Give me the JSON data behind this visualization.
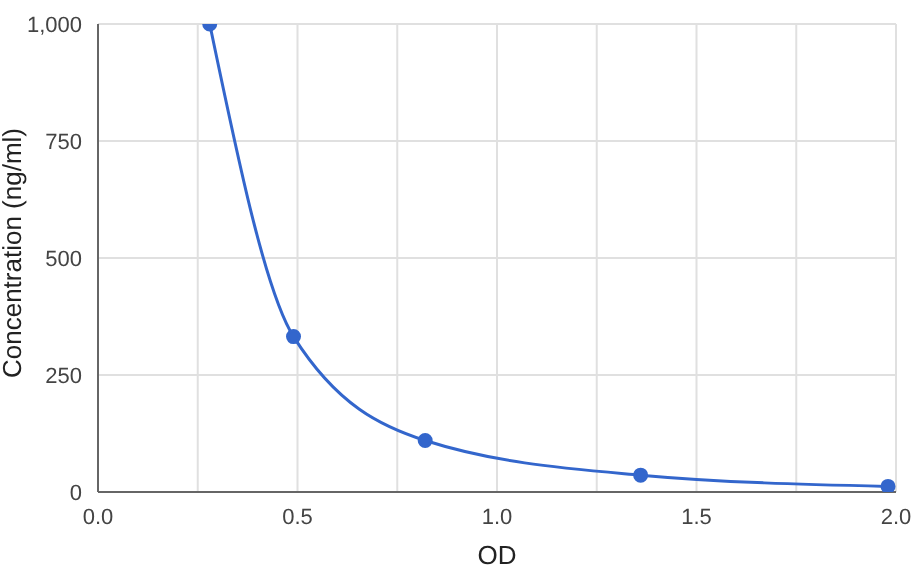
{
  "chart_data": {
    "type": "line",
    "xlabel": "OD",
    "ylabel": "Concentration (ng/ml)",
    "x": [
      0.28,
      0.49,
      0.82,
      1.36,
      1.98
    ],
    "series": [
      {
        "color": "#3366cc",
        "values": [
          1000,
          332,
          110,
          36,
          12
        ]
      }
    ],
    "xlim": [
      0,
      2
    ],
    "xticks": [
      {
        "value": 0,
        "label": "0.0"
      },
      {
        "value": 0.25,
        "label": null
      },
      0.5,
      {
        "value": 0.75,
        "label": null
      },
      {
        "value": 1,
        "label": "1.0"
      },
      {
        "value": 1.25,
        "label": null
      },
      1.5,
      {
        "value": 1.75,
        "label": null
      },
      {
        "value": 2,
        "label": "2.0"
      }
    ],
    "ylim": [
      0,
      1000
    ],
    "yticks": [
      0,
      250,
      500,
      750,
      {
        "value": 1000,
        "label": "1,000"
      }
    ],
    "grid": true,
    "marker": "circle",
    "line_style": "solid",
    "legend": false
  }
}
